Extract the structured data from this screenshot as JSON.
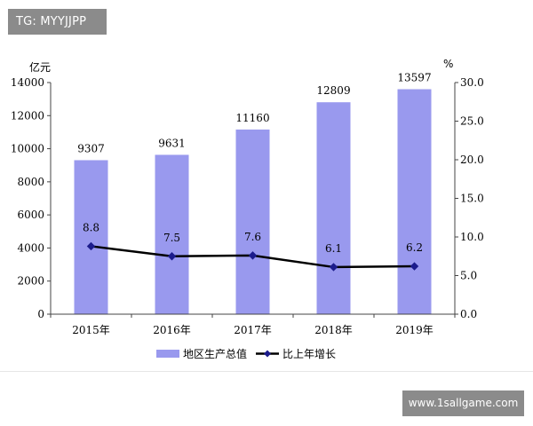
{
  "watermark_tag": "TG: MYYJJPP",
  "watermark_site": "www.1sallgame.com",
  "colors": {
    "bar": "#9999ee",
    "line": "#000000",
    "marker": "#1c1c8c"
  },
  "chart_data": {
    "type": "bar",
    "categories": [
      "2015年",
      "2016年",
      "2017年",
      "2018年",
      "2019年"
    ],
    "series": [
      {
        "name": "地区生产总值",
        "type": "bar",
        "axis": "left",
        "values": [
          9307,
          9631,
          11160,
          12809,
          13597
        ],
        "labels": [
          "9307",
          "9631",
          "11160",
          "12809",
          "13597"
        ]
      },
      {
        "name": "比上年增长",
        "type": "line",
        "axis": "right",
        "values": [
          8.8,
          7.5,
          7.6,
          6.1,
          6.2
        ],
        "labels": [
          "8.8",
          "7.5",
          "7.6",
          "6.1",
          "6.2"
        ]
      }
    ],
    "y_left": {
      "unit": "亿元",
      "ylim": [
        0,
        14000
      ],
      "ticks": [
        "0",
        "2000",
        "4000",
        "6000",
        "8000",
        "10000",
        "12000",
        "14000"
      ]
    },
    "y_right": {
      "unit": "%",
      "ylim": [
        0,
        30
      ],
      "ticks": [
        "0.0",
        "5.0",
        "10.0",
        "15.0",
        "20.0",
        "25.0",
        "30.0"
      ]
    },
    "legend_position": "bottom",
    "grid": false
  }
}
